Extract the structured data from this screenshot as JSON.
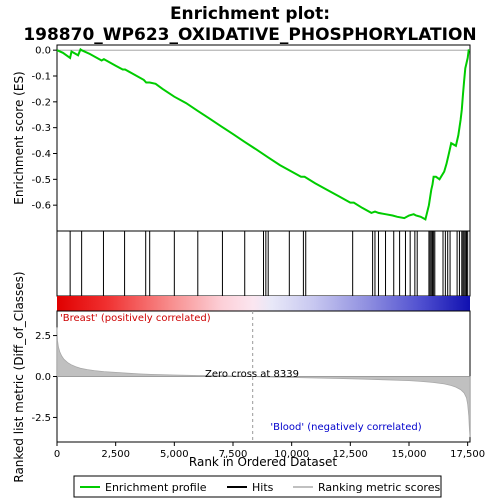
{
  "title_line1": "Enrichment plot:",
  "title_line2": "198870_WP623_OXIDATIVE_PHOSPHORYLATION",
  "labels": {
    "es_ylabel": "Enrichment score (ES)",
    "metric_ylabel": "Ranked list metric (Diff_of_Classes)",
    "xlabel": "Rank in Ordered Dataset",
    "pos_label": "'Breast' (positively correlated)",
    "neg_label": "'Blood' (negatively correlated)",
    "zero_cross": "Zero cross at 8339"
  },
  "legend": {
    "items": [
      {
        "label": "Enrichment profile",
        "kind": "green-line"
      },
      {
        "label": "Hits",
        "kind": "black-line"
      },
      {
        "label": "Ranking metric scores",
        "kind": "gray-line"
      }
    ]
  },
  "colors": {
    "profile": "#00cc00",
    "hits": "#000000",
    "metric": "#c0c0c0",
    "pos": "#cc0000",
    "neg": "#0000cc"
  },
  "chart_data": [
    {
      "type": "line",
      "name": "enrichment-profile",
      "xlim": [
        0,
        17600
      ],
      "ylim": [
        -0.7,
        0.02
      ],
      "yticks": [
        0.0,
        -0.1,
        -0.2,
        -0.3,
        -0.4,
        -0.5,
        -0.6
      ],
      "ytick_labels": [
        "0.0",
        "-0.1",
        "-0.2",
        "-0.3",
        "-0.4",
        "-0.5",
        "-0.6"
      ],
      "x": [
        0,
        250,
        560,
        620,
        900,
        1000,
        1050,
        1400,
        1900,
        2000,
        2100,
        2500,
        2800,
        2900,
        3200,
        3700,
        3800,
        3950,
        4200,
        4500,
        5000,
        5500,
        6000,
        6500,
        7000,
        7500,
        8000,
        8500,
        9000,
        9500,
        10000,
        10400,
        10550,
        11000,
        11500,
        12000,
        12500,
        12650,
        13000,
        13400,
        13550,
        13700,
        14000,
        14300,
        14500,
        14800,
        15000,
        15200,
        15300,
        15500,
        15700,
        15850,
        15900,
        15950,
        16000,
        16050,
        16150,
        16300,
        16500,
        16600,
        16700,
        16800,
        17000,
        17100,
        17200,
        17250,
        17300,
        17350,
        17400,
        17450,
        17500,
        17550
      ],
      "y": [
        0.0,
        -0.01,
        -0.03,
        -0.005,
        -0.02,
        0.003,
        0.0,
        -0.015,
        -0.04,
        -0.035,
        -0.04,
        -0.06,
        -0.075,
        -0.075,
        -0.09,
        -0.115,
        -0.125,
        -0.125,
        -0.13,
        -0.15,
        -0.18,
        -0.205,
        -0.235,
        -0.265,
        -0.295,
        -0.325,
        -0.355,
        -0.385,
        -0.415,
        -0.445,
        -0.47,
        -0.49,
        -0.49,
        -0.515,
        -0.54,
        -0.565,
        -0.59,
        -0.59,
        -0.61,
        -0.63,
        -0.625,
        -0.63,
        -0.635,
        -0.64,
        -0.645,
        -0.65,
        -0.64,
        -0.635,
        -0.64,
        -0.645,
        -0.655,
        -0.6,
        -0.57,
        -0.54,
        -0.52,
        -0.49,
        -0.49,
        -0.5,
        -0.47,
        -0.44,
        -0.4,
        -0.36,
        -0.37,
        -0.33,
        -0.27,
        -0.23,
        -0.17,
        -0.12,
        -0.07,
        -0.05,
        -0.03,
        0.003
      ]
    },
    {
      "type": "bar",
      "name": "hits",
      "x": [
        560,
        1050,
        1980,
        2880,
        3780,
        3950,
        5000,
        6000,
        7050,
        8000,
        8800,
        8900,
        9000,
        9900,
        10500,
        10600,
        12600,
        13450,
        13550,
        13700,
        14000,
        14350,
        14600,
        14850,
        15050,
        15250,
        15350,
        15850,
        15900,
        15950,
        16000,
        16050,
        16100,
        16450,
        16550,
        16650,
        16750,
        17050,
        17150,
        17250,
        17300,
        17350,
        17400,
        17450,
        17500
      ]
    },
    {
      "type": "area",
      "name": "ranking-metric",
      "xlim": [
        0,
        17600
      ],
      "ylim": [
        -4.0,
        4.0
      ],
      "yticks": [
        2.5,
        0.0,
        -2.5
      ],
      "ytick_labels": [
        "2.5",
        "0.0",
        "-2.5"
      ],
      "xticks": [
        0,
        2500,
        5000,
        7500,
        10000,
        12500,
        15000,
        17500
      ],
      "xtick_labels": [
        "0",
        "2,500",
        "5,000",
        "7,500",
        "10,000",
        "12,500",
        "15,000",
        "17,500"
      ],
      "zero_cross": 8339,
      "x": [
        0,
        20,
        60,
        120,
        200,
        300,
        450,
        600,
        800,
        1000,
        1300,
        1600,
        2000,
        2500,
        3000,
        3500,
        4000,
        5000,
        6000,
        7000,
        8000,
        8339,
        9000,
        10000,
        11000,
        12000,
        13000,
        14000,
        15000,
        15500,
        16000,
        16500,
        16800,
        17000,
        17200,
        17350,
        17450,
        17500,
        17550,
        17580,
        17600
      ],
      "y": [
        3.0,
        2.2,
        1.8,
        1.5,
        1.25,
        1.05,
        0.85,
        0.72,
        0.6,
        0.5,
        0.42,
        0.36,
        0.3,
        0.25,
        0.2,
        0.16,
        0.13,
        0.09,
        0.06,
        0.04,
        0.01,
        0.0,
        -0.03,
        -0.06,
        -0.09,
        -0.12,
        -0.16,
        -0.2,
        -0.25,
        -0.3,
        -0.36,
        -0.45,
        -0.55,
        -0.65,
        -0.8,
        -1.0,
        -1.3,
        -1.7,
        -2.4,
        -3.3,
        -3.7
      ]
    }
  ]
}
